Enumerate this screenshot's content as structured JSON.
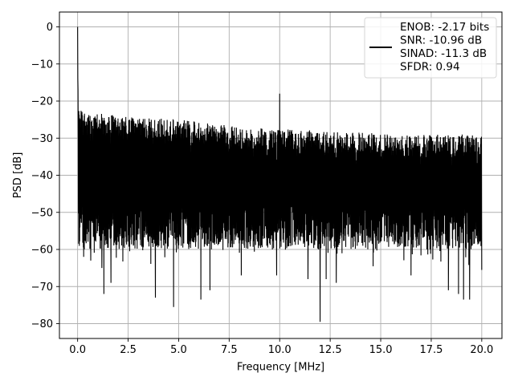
{
  "chart_data": {
    "type": "line",
    "title": "",
    "xlabel": "Frequency [MHz]",
    "ylabel": "PSD [dB]",
    "xlim": [
      -0.9,
      21.0
    ],
    "ylim": [
      -84,
      4
    ],
    "xticks": [
      0.0,
      2.5,
      5.0,
      7.5,
      10.0,
      12.5,
      15.0,
      17.5,
      20.0
    ],
    "xtick_labels": [
      "0.0",
      "2.5",
      "5.0",
      "7.5",
      "10.0",
      "12.5",
      "15.0",
      "17.5",
      "20.0"
    ],
    "yticks": [
      0,
      -10,
      -20,
      -30,
      -40,
      -50,
      -60,
      -70,
      -80
    ],
    "ytick_labels": [
      "0",
      "−10",
      "−20",
      "−30",
      "−40",
      "−50",
      "−60",
      "−70",
      "−80"
    ],
    "grid": true,
    "legend_position": "top-right",
    "legend_lines": [
      "ENOB: -2.17 bits",
      "SNR: -10.96 dB",
      "SINAD: -11.3 dB",
      "SFDR: 0.94"
    ],
    "series": [
      {
        "color": "#000000",
        "x_range": [
          0,
          20
        ],
        "dc_peak": {
          "x": 0.0,
          "y": 0.0
        },
        "tone_peak": {
          "x": 10.0,
          "y": -18
        },
        "envelope_top": [
          [
            0.1,
            -22
          ],
          [
            2.0,
            -24
          ],
          [
            5.0,
            -25
          ],
          [
            8.0,
            -27
          ],
          [
            12.0,
            -28
          ],
          [
            16.0,
            -29
          ],
          [
            20.0,
            -29
          ]
        ],
        "noise_floor_mean": -40,
        "deep_nulls": [
          {
            "x": 0.3,
            "y": -62
          },
          {
            "x": 0.65,
            "y": -63
          },
          {
            "x": 1.2,
            "y": -65
          },
          {
            "x": 1.3,
            "y": -72
          },
          {
            "x": 1.65,
            "y": -69
          },
          {
            "x": 3.85,
            "y": -73
          },
          {
            "x": 4.75,
            "y": -75.5
          },
          {
            "x": 6.1,
            "y": -73.5
          },
          {
            "x": 6.55,
            "y": -71
          },
          {
            "x": 8.1,
            "y": -67
          },
          {
            "x": 9.85,
            "y": -67
          },
          {
            "x": 11.4,
            "y": -68
          },
          {
            "x": 12.0,
            "y": -79.5
          },
          {
            "x": 12.3,
            "y": -68
          },
          {
            "x": 12.8,
            "y": -69
          },
          {
            "x": 16.5,
            "y": -67
          },
          {
            "x": 18.35,
            "y": -71
          },
          {
            "x": 18.85,
            "y": -72
          },
          {
            "x": 19.1,
            "y": -73.5
          },
          {
            "x": 19.4,
            "y": -73.5
          },
          {
            "x": 20.0,
            "y": -65.5
          }
        ]
      }
    ]
  }
}
